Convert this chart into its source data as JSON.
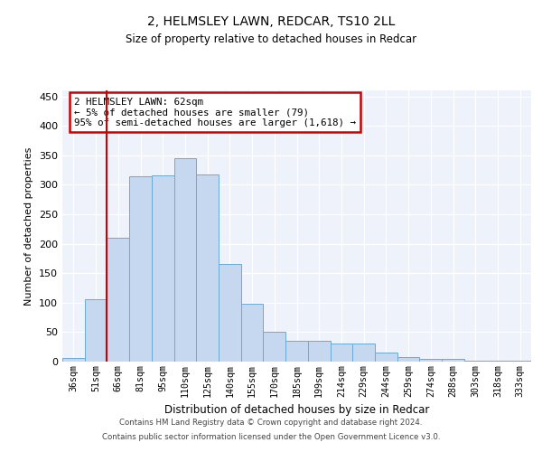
{
  "title1": "2, HELMSLEY LAWN, REDCAR, TS10 2LL",
  "title2": "Size of property relative to detached houses in Redcar",
  "xlabel": "Distribution of detached houses by size in Redcar",
  "ylabel": "Number of detached properties",
  "bar_color": "#c5d8f0",
  "bar_edge_color": "#6aaad4",
  "categories": [
    "36sqm",
    "51sqm",
    "66sqm",
    "81sqm",
    "95sqm",
    "110sqm",
    "125sqm",
    "140sqm",
    "155sqm",
    "170sqm",
    "185sqm",
    "199sqm",
    "214sqm",
    "229sqm",
    "244sqm",
    "259sqm",
    "274sqm",
    "288sqm",
    "303sqm",
    "318sqm",
    "333sqm"
  ],
  "values": [
    6,
    106,
    210,
    315,
    316,
    345,
    318,
    165,
    98,
    50,
    35,
    35,
    30,
    30,
    15,
    8,
    4,
    5,
    2,
    1,
    1
  ],
  "ylim": [
    0,
    460
  ],
  "yticks": [
    0,
    50,
    100,
    150,
    200,
    250,
    300,
    350,
    400,
    450
  ],
  "property_line_x": 1.5,
  "annotation_text": "2 HELMSLEY LAWN: 62sqm\n← 5% of detached houses are smaller (79)\n95% of semi-detached houses are larger (1,618) →",
  "annotation_box_color": "#ffffff",
  "annotation_box_edge": "#cc0000",
  "red_line_color": "#cc0000",
  "footer_line1": "Contains HM Land Registry data © Crown copyright and database right 2024.",
  "footer_line2": "Contains public sector information licensed under the Open Government Licence v3.0.",
  "background_color": "#eef2fb",
  "fig_color": "#ffffff",
  "grid_color": "#ffffff"
}
